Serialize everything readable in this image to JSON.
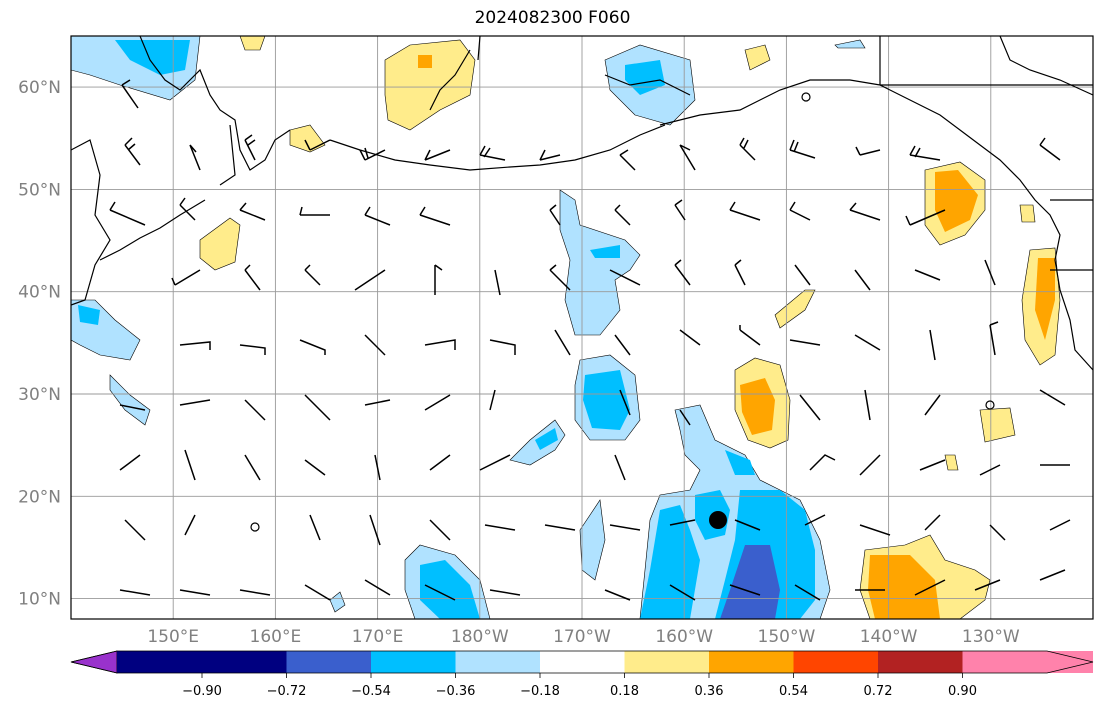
{
  "title": "2024082300 F060",
  "lat_labels": [
    "60°N",
    "50°N",
    "40°N",
    "30°N",
    "20°N",
    "10°N"
  ],
  "lon_labels": [
    "150°E",
    "160°E",
    "170°E",
    "180°W",
    "170°W",
    "160°W",
    "150°W",
    "140°W",
    "130°W"
  ],
  "colorbar": {
    "tick_labels": [
      "−0.90",
      "−0.72",
      "−0.54",
      "−0.36",
      "−0.18",
      "0.18",
      "0.36",
      "0.54",
      "0.72",
      "0.90"
    ],
    "colors": [
      "#9932cc",
      "#000080",
      "#3a5fcd",
      "#00bfff",
      "#b0e2ff",
      "#ffffff",
      "#ffec8b",
      "#ffa500",
      "#ff4500",
      "#b22222",
      "#ff82ab"
    ]
  },
  "map": {
    "projection": "PlateCarree",
    "extent_lon": [
      140,
      240
    ],
    "extent_lat": [
      8,
      65
    ],
    "gridlines": true,
    "features": [
      "coastlines",
      "wind-barbs",
      "shaded-anomaly-field",
      "storm-center-marker"
    ]
  }
}
